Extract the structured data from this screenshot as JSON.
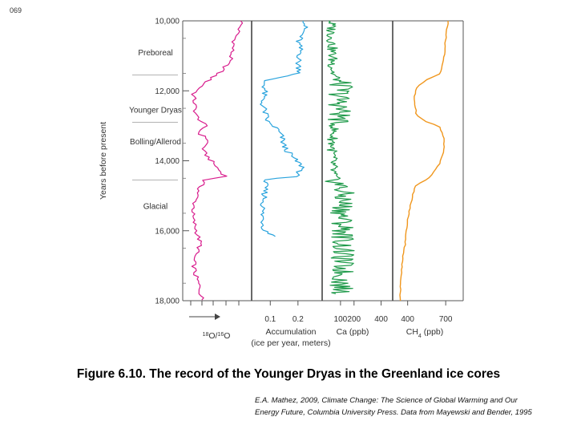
{
  "slide_number": "069",
  "caption": "Figure 6.10.  The record of the Younger Dryas in the Greenland ice cores",
  "credit_line1": "E.A. Mathez, 2009, Climate Change: The Science of Global Warming and Our",
  "credit_line2": "Energy Future, Columbia University Press. Data from Mayewski and Bender, 1995",
  "chart_data": {
    "type": "line",
    "ylabel": "Years before present",
    "yticks": [
      "10,000",
      "12,000",
      "14,000",
      "16,000",
      "18,000"
    ],
    "yticks_values": [
      10000,
      12000,
      14000,
      16000,
      18000
    ],
    "ylim": [
      10000,
      18000
    ],
    "periods": [
      {
        "label": "Preboreal",
        "year": 10900
      },
      {
        "label": "Younger Dryas",
        "year": 12550
      },
      {
        "label": "Bolling/Allerod",
        "year": 13450
      },
      {
        "label": "Glacial",
        "year": 15300
      }
    ],
    "period_boundaries": [
      11550,
      12900,
      14550
    ],
    "panels": [
      {
        "name": "d18O",
        "xlabel_main": "O/",
        "xlabel_sup1": "18",
        "xlabel_sup2": "16",
        "xlabel_tail": "O",
        "arrow": true,
        "xlim": [
          0,
          1
        ],
        "ticks": [],
        "color": "#d81b8c",
        "points": [
          [
            10000,
            0.92
          ],
          [
            10200,
            0.88
          ],
          [
            10500,
            0.8
          ],
          [
            10800,
            0.76
          ],
          [
            11100,
            0.72
          ],
          [
            11400,
            0.6
          ],
          [
            11700,
            0.35
          ],
          [
            11900,
            0.22
          ],
          [
            12100,
            0.1
          ],
          [
            12400,
            0.12
          ],
          [
            12700,
            0.14
          ],
          [
            13000,
            0.3
          ],
          [
            13200,
            0.18
          ],
          [
            13400,
            0.36
          ],
          [
            13700,
            0.25
          ],
          [
            14000,
            0.4
          ],
          [
            14300,
            0.55
          ],
          [
            14450,
            0.65
          ],
          [
            14550,
            0.28
          ],
          [
            14800,
            0.2
          ],
          [
            15200,
            0.12
          ],
          [
            15600,
            0.08
          ],
          [
            16000,
            0.15
          ],
          [
            16400,
            0.22
          ],
          [
            16800,
            0.1
          ],
          [
            17200,
            0.12
          ],
          [
            17600,
            0.2
          ],
          [
            18000,
            0.25
          ]
        ]
      },
      {
        "name": "accumulation",
        "xlabel": "Accumulation",
        "xlabel2": "(ice per year, meters)",
        "xlim": [
          0.05,
          0.27
        ],
        "ticks": [
          "0.1",
          "0.2"
        ],
        "ticks_values": [
          0.1,
          0.2
        ],
        "color": "#29a3dd",
        "points": [
          [
            10000,
            0.23
          ],
          [
            10300,
            0.22
          ],
          [
            10600,
            0.2
          ],
          [
            10900,
            0.21
          ],
          [
            11200,
            0.2
          ],
          [
            11500,
            0.21
          ],
          [
            11600,
            0.14
          ],
          [
            11700,
            0.08
          ],
          [
            12000,
            0.08
          ],
          [
            12300,
            0.07
          ],
          [
            12600,
            0.08
          ],
          [
            12900,
            0.09
          ],
          [
            13050,
            0.12
          ],
          [
            13300,
            0.14
          ],
          [
            13600,
            0.15
          ],
          [
            13900,
            0.18
          ],
          [
            14200,
            0.22
          ],
          [
            14450,
            0.19
          ],
          [
            14550,
            0.08
          ],
          [
            15000,
            0.08
          ],
          [
            15500,
            0.07
          ],
          [
            16000,
            0.08
          ],
          [
            16200,
            0.13
          ]
        ]
      },
      {
        "name": "Ca",
        "xlabel": "Ca (ppb)",
        "xlim": [
          0,
          450
        ],
        "ticks": [
          "100",
          "200",
          "400"
        ],
        "ticks_values": [
          100,
          200,
          400
        ],
        "color": "#1f9a4a",
        "points": [
          [
            10000,
            30
          ],
          [
            10500,
            35
          ],
          [
            11000,
            40
          ],
          [
            11500,
            45
          ],
          [
            11700,
            80
          ],
          [
            11900,
            110
          ],
          [
            12200,
            90
          ],
          [
            12500,
            100
          ],
          [
            12800,
            95
          ],
          [
            12900,
            60
          ],
          [
            13200,
            45
          ],
          [
            13600,
            40
          ],
          [
            14000,
            40
          ],
          [
            14400,
            45
          ],
          [
            14550,
            65
          ],
          [
            14800,
            110
          ],
          [
            15200,
            120
          ],
          [
            15600,
            110
          ],
          [
            16000,
            125
          ],
          [
            16400,
            115
          ],
          [
            16800,
            110
          ],
          [
            17200,
            115
          ],
          [
            17600,
            105
          ],
          [
            17800,
            110
          ]
        ]
      },
      {
        "name": "CH4",
        "xlabel_main": "CH",
        "xlabel_sub": "4",
        "xlabel_tail": "(ppb)",
        "xlim": [
          320,
          800
        ],
        "ticks": [
          "400",
          "700"
        ],
        "ticks_values": [
          400,
          700
        ],
        "color": "#f0961c",
        "points": [
          [
            10000,
            720
          ],
          [
            10500,
            700
          ],
          [
            11000,
            690
          ],
          [
            11500,
            660
          ],
          [
            11700,
            540
          ],
          [
            11900,
            470
          ],
          [
            12200,
            450
          ],
          [
            12700,
            470
          ],
          [
            12900,
            550
          ],
          [
            13000,
            650
          ],
          [
            13400,
            690
          ],
          [
            13800,
            680
          ],
          [
            14100,
            650
          ],
          [
            14500,
            570
          ],
          [
            14700,
            460
          ],
          [
            15000,
            440
          ],
          [
            15300,
            420
          ],
          [
            15700,
            400
          ],
          [
            16000,
            390
          ],
          [
            16400,
            380
          ],
          [
            16800,
            360
          ],
          [
            17200,
            350
          ],
          [
            17600,
            345
          ],
          [
            18000,
            340
          ]
        ]
      }
    ]
  }
}
